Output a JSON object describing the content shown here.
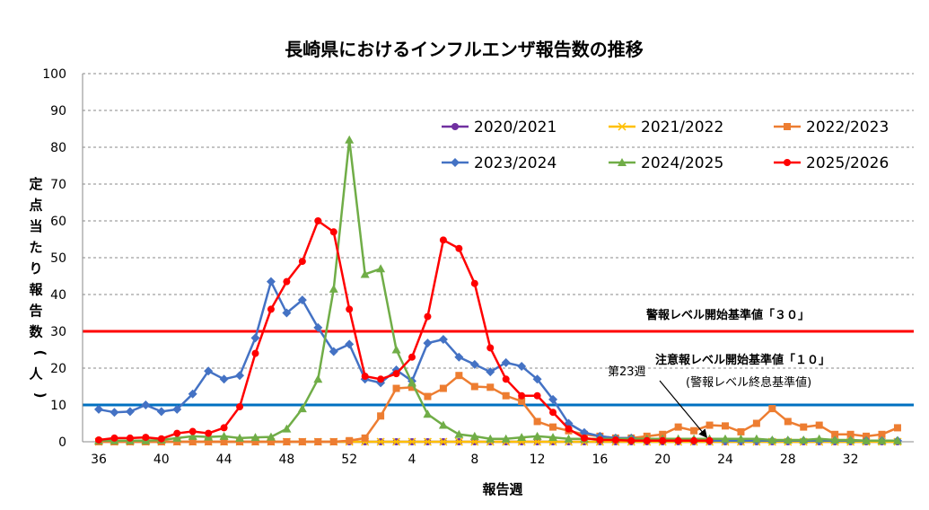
{
  "chart_data": {
    "type": "line",
    "title": "長崎県におけるインフルエンザ報告数の推移",
    "xlabel": "報告週",
    "ylabel": "定点当たり報告数（人）",
    "ylim": [
      0,
      100
    ],
    "yticks": [
      "0",
      "10",
      "20",
      "30",
      "40",
      "50",
      "60",
      "70",
      "80",
      "90",
      "100"
    ],
    "categories": [
      "36",
      "37",
      "38",
      "39",
      "40",
      "41",
      "42",
      "43",
      "44",
      "45",
      "46",
      "47",
      "48",
      "49",
      "50",
      "51",
      "52",
      "1",
      "2",
      "3",
      "4",
      "5",
      "6",
      "7",
      "8",
      "9",
      "10",
      "11",
      "12",
      "13",
      "14",
      "15",
      "16",
      "17",
      "18",
      "19",
      "20",
      "21",
      "22",
      "23",
      "24",
      "25",
      "26",
      "27",
      "28",
      "29",
      "30",
      "31",
      "32",
      "33",
      "34",
      "35"
    ],
    "xtick_labels": [
      "36",
      "40",
      "44",
      "48",
      "52",
      "4",
      "8",
      "12",
      "16",
      "20",
      "24",
      "28",
      "32"
    ],
    "xtick_index": [
      0,
      4,
      8,
      12,
      16,
      20,
      24,
      28,
      32,
      36,
      40,
      44,
      48
    ],
    "grid": "horizontal dashed",
    "legend_position": "top-right",
    "series": [
      {
        "name": "2020/2021",
        "color": "#7030A0",
        "marker": "circle",
        "values": [
          0,
          0,
          0,
          0,
          0,
          0,
          0,
          0,
          0,
          0,
          0,
          0,
          0,
          0,
          0,
          0,
          0,
          0,
          0,
          0,
          0,
          0,
          0,
          0,
          0,
          0,
          0,
          0,
          0,
          0,
          0,
          0,
          0,
          0,
          0,
          0,
          0,
          0,
          0,
          0,
          0,
          0,
          0,
          0,
          0,
          0,
          0,
          0,
          0,
          0,
          0,
          0
        ]
      },
      {
        "name": "2021/2022",
        "color": "#FFC000",
        "marker": "x",
        "values": [
          0,
          0,
          0,
          0,
          0,
          0,
          0,
          0,
          0,
          0,
          0,
          0,
          0,
          0,
          0,
          0,
          0,
          0,
          0,
          0,
          0,
          0,
          0,
          0,
          0,
          0,
          0,
          0,
          0,
          0,
          0,
          0,
          0,
          0,
          0,
          0,
          0,
          0,
          0,
          0,
          0,
          0,
          0,
          0,
          0,
          0,
          0,
          0,
          0,
          0,
          0,
          0
        ]
      },
      {
        "name": "2022/2023",
        "color": "#ED7D31",
        "marker": "square",
        "values": [
          0,
          0,
          0,
          0,
          0,
          0,
          0,
          0,
          0,
          0,
          0,
          0,
          0,
          0,
          0,
          0,
          0.3,
          1,
          7,
          14.5,
          14.8,
          12.3,
          14.5,
          18,
          15,
          14.8,
          12.5,
          11,
          5.5,
          4,
          3,
          2,
          1.5,
          1,
          1,
          1.5,
          2,
          4,
          3,
          4.5,
          4.3,
          2.7,
          5,
          9,
          5.5,
          4,
          4.5,
          2,
          2,
          1.5,
          2,
          3.8
        ]
      },
      {
        "name": "2023/2024",
        "color": "#4472C4",
        "marker": "diamond",
        "values": [
          8.8,
          8,
          8.2,
          10,
          8.2,
          8.8,
          13,
          19.2,
          17,
          18,
          28.2,
          43.5,
          35,
          38.5,
          31,
          24.5,
          26.5,
          17,
          16,
          19.5,
          16.5,
          26.8,
          27.8,
          23,
          21,
          19,
          21.5,
          20.5,
          17,
          11.5,
          5,
          2.5,
          1.5,
          1,
          1,
          0.5,
          0.5,
          0.3,
          0.3,
          0.3,
          0.3,
          0.3,
          0.3,
          0.3,
          0.3,
          0.3,
          0.3,
          0.3,
          0.3,
          0.3,
          0.3,
          0.3
        ]
      },
      {
        "name": "2024/2025",
        "color": "#70AD47",
        "marker": "triangle",
        "values": [
          0.3,
          0.3,
          0.3,
          0.3,
          0.5,
          1,
          1.5,
          1.3,
          1.5,
          1,
          1.2,
          1.3,
          3.5,
          9,
          17,
          41.5,
          82,
          45.5,
          47,
          25,
          16,
          7.5,
          4.5,
          2,
          1.5,
          0.8,
          0.8,
          1.2,
          1.5,
          1.2,
          0.8,
          0.8,
          0.8,
          0.8,
          0.8,
          0.8,
          0.8,
          0.8,
          0.8,
          0.8,
          0.8,
          0.8,
          0.8,
          0.5,
          0.5,
          0.5,
          0.8,
          0.5,
          0.5,
          0.3,
          0.3,
          0.3
        ]
      },
      {
        "name": "2025/2026",
        "color": "#FF0000",
        "marker": "circle",
        "values": [
          0.5,
          1,
          1,
          1.2,
          0.8,
          2.3,
          2.8,
          2.3,
          3.8,
          9.5,
          24,
          36,
          43.5,
          49,
          60,
          57,
          36,
          17.8,
          17,
          18.5,
          23,
          34,
          54.8,
          52.5,
          43,
          25.5,
          17,
          12.5,
          12.5,
          8,
          3.5,
          1,
          0.5,
          0.5,
          0.3,
          0.3,
          0.3,
          0.3,
          0.3,
          0.3,
          null,
          null,
          null,
          null,
          null,
          null,
          null,
          null,
          null,
          null,
          null,
          null
        ]
      }
    ],
    "reference_lines": [
      {
        "value": 30,
        "color": "#FF0000",
        "label": "警報レベル開始基準値「３０」"
      },
      {
        "value": 10,
        "color": "#0070C0",
        "label_main": "注意報レベル開始基準値「１０」",
        "label_sub": "(警報レベル終息基準値)"
      }
    ],
    "annotation": {
      "label": "第23週",
      "category": "23"
    }
  }
}
